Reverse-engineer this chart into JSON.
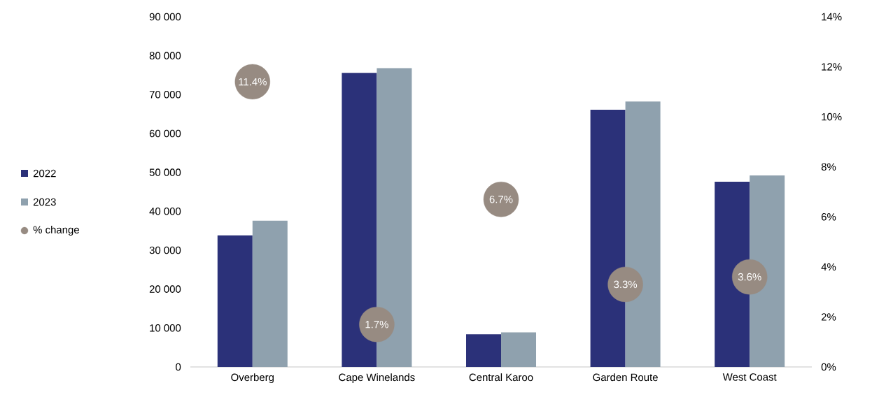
{
  "chart_data": {
    "type": "bar",
    "categories": [
      "Overberg",
      "Cape Winelands",
      "Central Karoo",
      "Garden Route",
      "West Coast"
    ],
    "series": [
      {
        "name": "2022",
        "color": "#2b3179",
        "values": [
          33800,
          75600,
          8400,
          66100,
          47600
        ]
      },
      {
        "name": "2023",
        "color": "#8fa1ae",
        "values": [
          37600,
          76800,
          8900,
          68200,
          49200
        ]
      },
      {
        "name": "% change",
        "type": "scatter",
        "axis": "y2",
        "color": "#978b82",
        "values": [
          11.4,
          1.7,
          6.7,
          3.3,
          3.6
        ],
        "value_labels": [
          "11.4%",
          "1.7%",
          "6.7%",
          "3.3%",
          "3.6%"
        ]
      }
    ],
    "ylim": [
      0,
      90000
    ],
    "yticks": [
      0,
      {
        "value": 10000,
        "label": "10 000"
      },
      {
        "value": 20000,
        "label": "20 000"
      },
      {
        "value": 30000,
        "label": "30 000"
      },
      {
        "value": 40000,
        "label": "40 000"
      },
      {
        "value": 50000,
        "label": "50 000"
      },
      {
        "value": 60000,
        "label": "60 000"
      },
      {
        "value": 70000,
        "label": "70 000"
      },
      {
        "value": 80000,
        "label": "80 000"
      },
      {
        "value": 90000,
        "label": "90 000"
      }
    ],
    "y2lim": [
      0,
      14
    ],
    "y2ticks": [
      {
        "value": 0,
        "label": "0%"
      },
      {
        "value": 2,
        "label": "2%"
      },
      {
        "value": 4,
        "label": "4%"
      },
      {
        "value": 6,
        "label": "6%"
      },
      {
        "value": 8,
        "label": "8%"
      },
      {
        "value": 10,
        "label": "10%"
      },
      {
        "value": 12,
        "label": "12%"
      },
      {
        "value": 14,
        "label": "14%"
      }
    ],
    "legend": "left",
    "marker": "circle"
  }
}
